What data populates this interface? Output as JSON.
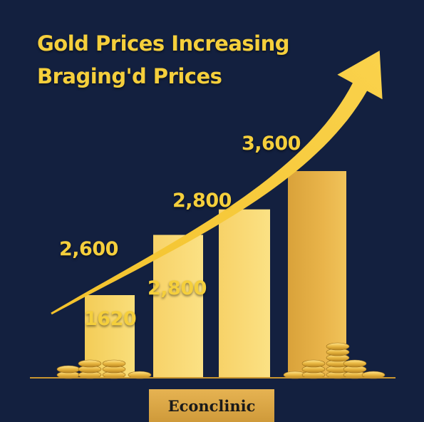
{
  "header": {
    "title_line_1": "Gold Prices Increasing",
    "title_line_2": "Braging'd Prices"
  },
  "brand": {
    "label": "Econclinic"
  },
  "chart_data": {
    "type": "bar",
    "title": "Gold Prices Increasing Braging'd Prices",
    "xlabel": "",
    "ylabel": "",
    "bar_values": [
      1620,
      2800,
      3300,
      4050
    ],
    "bar_labels": [
      "1620",
      "2,800",
      "",
      ""
    ],
    "trend_points": [
      {
        "value": 2600,
        "label": "2,600"
      },
      {
        "value": 2800,
        "label": "2,800"
      },
      {
        "value": 3600,
        "label": "3,600"
      }
    ],
    "ylim": [
      0,
      5000
    ],
    "grid": false,
    "legend": "none",
    "colors": {
      "background": "#13203f",
      "gold_light": "#f7d66a",
      "gold_mid": "#ecbd46",
      "gold_dark": "#d9a23a",
      "arrow": "#f6c933",
      "label": "#f5cf3c",
      "brand_bg": "#e2ad4c"
    }
  }
}
